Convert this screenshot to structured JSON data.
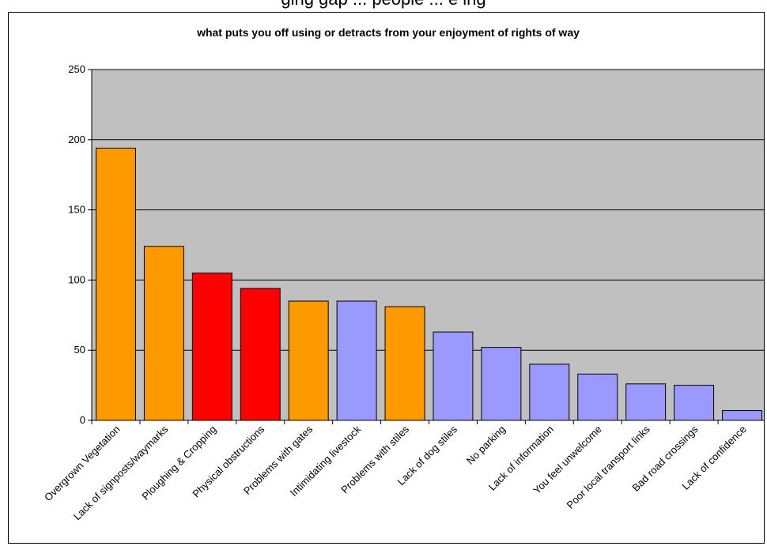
{
  "header_text": "ging gap   ...   people   ...   e ing",
  "chart_data": {
    "type": "bar",
    "title": "what puts you off using or detracts from your enjoyment of rights of way",
    "xlabel": "",
    "ylabel": "",
    "ylim": [
      0,
      250
    ],
    "yticks": [
      0,
      50,
      100,
      150,
      200,
      250
    ],
    "grid": true,
    "plot_background": "#C0C0C0",
    "categories": [
      "Overgrown Vegetation",
      "Lack of signposts/waymarks",
      "Ploughing & Cropping",
      "Physical obstructions",
      "Problems with gates",
      "Intimidating livestock",
      "Problems with stiles",
      "Lack of dog stiles",
      "No parking",
      "Lack of information",
      "You feel unwelcome",
      "Poor local transport links",
      "Bad road crossings",
      "Lack of confidence"
    ],
    "values": [
      194,
      124,
      105,
      94,
      85,
      85,
      81,
      63,
      52,
      40,
      33,
      26,
      25,
      7
    ],
    "bar_colors": [
      "#FF9900",
      "#FF9900",
      "#FF0000",
      "#FF0000",
      "#FF9900",
      "#9999FF",
      "#FF9900",
      "#9999FF",
      "#9999FF",
      "#9999FF",
      "#9999FF",
      "#9999FF",
      "#9999FF",
      "#9999FF"
    ]
  }
}
